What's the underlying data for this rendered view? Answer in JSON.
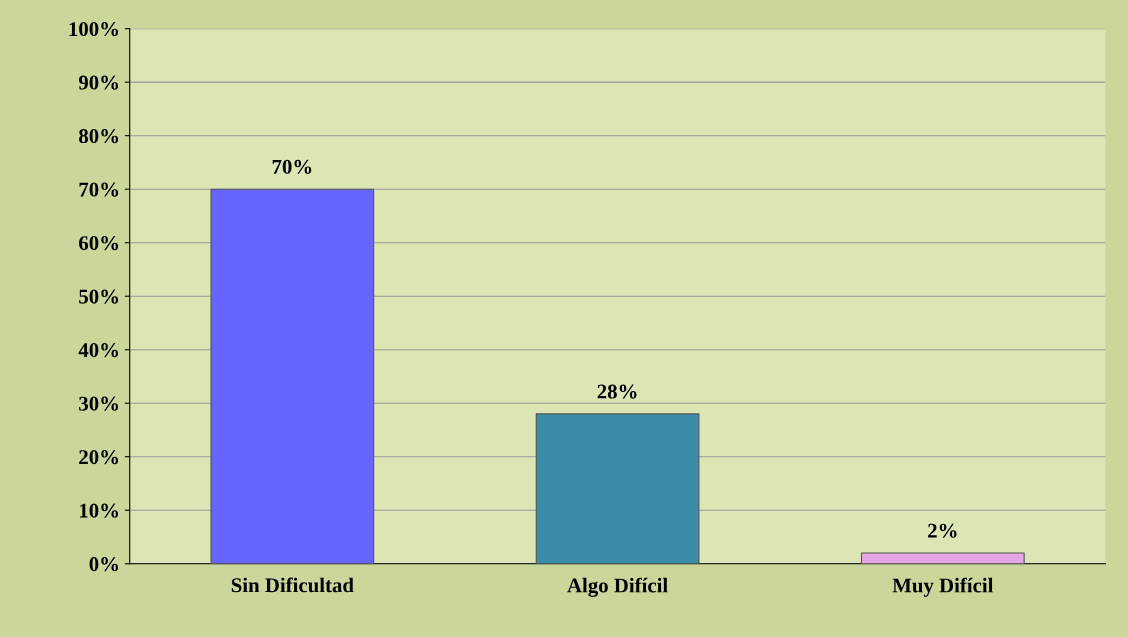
{
  "chart_data": {
    "type": "bar",
    "categories": [
      "Sin Dificultad",
      "Algo Difícil",
      "Muy Difícil"
    ],
    "values": [
      70,
      28,
      2
    ],
    "colors": [
      "#6666ff",
      "#3a8ca8",
      "#e6a6e6"
    ],
    "data_labels": true,
    "value_labels": [
      "70%",
      "28%",
      "2%"
    ],
    "ylim": [
      0,
      100
    ],
    "yticks": [
      {
        "value": 0,
        "label": "0%"
      },
      {
        "value": 10,
        "label": "10%"
      },
      {
        "value": 20,
        "label": "20%"
      },
      {
        "value": 30,
        "label": "30%"
      },
      {
        "value": 40,
        "label": "40%"
      },
      {
        "value": 50,
        "label": "50%"
      },
      {
        "value": 60,
        "label": "60%"
      },
      {
        "value": 70,
        "label": "70%"
      },
      {
        "value": 80,
        "label": "80%"
      },
      {
        "value": 90,
        "label": "90%"
      },
      {
        "value": 100,
        "label": "100%"
      }
    ],
    "grid": "y"
  }
}
